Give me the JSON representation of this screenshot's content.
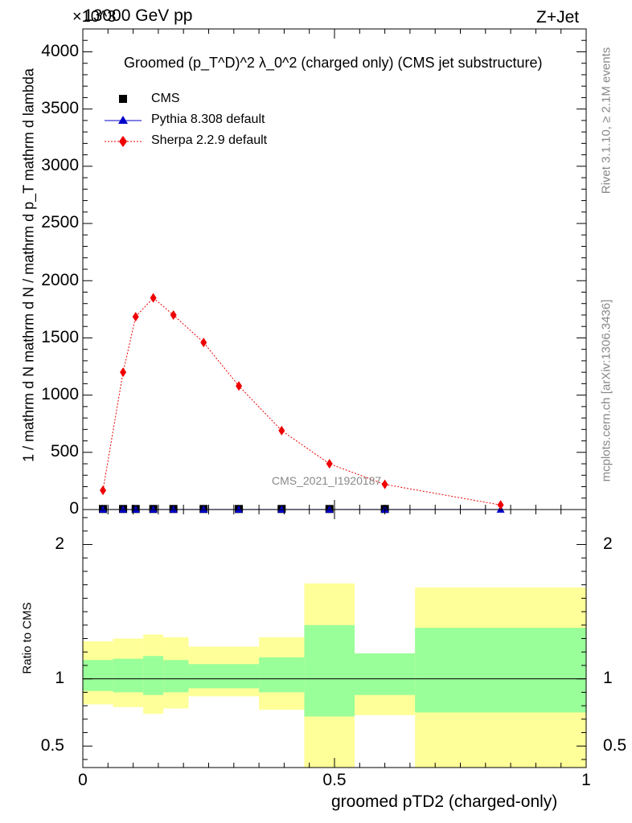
{
  "header": {
    "energy_label": "13000 GeV pp",
    "process_label": "Z+Jet",
    "exponent_label": "×10^3"
  },
  "side_labels": {
    "rivet": "Rivet 3.1.10, ≥ 2.1M events",
    "mcplots": "mcplots.cern.ch [arXiv:1306.3436]"
  },
  "watermark": "CMS_2021_I1920187",
  "chart_data": [
    {
      "type": "scatter",
      "title": "Groomed (p_T^D)^2 λ_0^2 (charged only) (CMS jet substructure)",
      "ylabel": "1 / mathrm d N  mathrm d N / mathrm d p_T mathrm d lambda",
      "ylim": [
        0,
        4200
      ],
      "xlim": [
        0,
        1
      ],
      "yticks": [
        0,
        500,
        1000,
        1500,
        2000,
        2500,
        3000,
        3500,
        4000
      ],
      "ytick_labels": [
        "0",
        "500",
        "1000",
        "1500",
        "2000",
        "2500",
        "3000",
        "3500",
        "4000"
      ],
      "legend_position": "top-left",
      "series": [
        {
          "name": "CMS",
          "color": "#000000",
          "marker": "square",
          "x": [
            0.04,
            0.08,
            0.105,
            0.14,
            0.18,
            0.24,
            0.31,
            0.395,
            0.49,
            0.6
          ],
          "y": [
            5,
            5,
            5,
            5,
            5,
            5,
            5,
            5,
            5,
            5
          ]
        },
        {
          "name": "Pythia 8.308 default",
          "color": "#0000cc",
          "marker": "triangle",
          "x": [
            0.04,
            0.08,
            0.105,
            0.14,
            0.18,
            0.24,
            0.31,
            0.395,
            0.49,
            0.6,
            0.83
          ],
          "y": [
            1,
            1,
            1,
            1,
            1,
            1,
            1,
            1,
            1,
            1,
            1
          ]
        },
        {
          "name": "Sherpa 2.2.9 default",
          "color": "#ee0000",
          "marker": "diamond",
          "x": [
            0.04,
            0.08,
            0.105,
            0.14,
            0.18,
            0.24,
            0.31,
            0.395,
            0.49,
            0.6,
            0.83
          ],
          "y": [
            168,
            1200,
            1685,
            1850,
            1700,
            1460,
            1080,
            690,
            400,
            220,
            40
          ]
        }
      ]
    },
    {
      "type": "area",
      "ylabel": "Ratio to CMS",
      "xlabel": "groomed pTD2 (charged-only)",
      "xlim": [
        0,
        1
      ],
      "ylim": [
        0.34,
        2.26
      ],
      "xticks": [
        0,
        0.5,
        1
      ],
      "xtick_labels": [
        "0",
        "0.5",
        "1"
      ],
      "yticks": [
        0.5,
        1,
        2
      ],
      "ytick_labels": [
        "0.5",
        "1",
        "2"
      ],
      "bands": [
        {
          "x0": 0.0,
          "x1": 0.06,
          "lo1": 0.91,
          "hi1": 1.14,
          "lo2": 0.81,
          "hi2": 1.28
        },
        {
          "x0": 0.06,
          "x1": 0.12,
          "lo1": 0.9,
          "hi1": 1.15,
          "lo2": 0.79,
          "hi2": 1.3
        },
        {
          "x0": 0.12,
          "x1": 0.16,
          "lo1": 0.88,
          "hi1": 1.17,
          "lo2": 0.74,
          "hi2": 1.33
        },
        {
          "x0": 0.16,
          "x1": 0.21,
          "lo1": 0.9,
          "hi1": 1.14,
          "lo2": 0.78,
          "hi2": 1.31
        },
        {
          "x0": 0.21,
          "x1": 0.35,
          "lo1": 0.93,
          "hi1": 1.11,
          "lo2": 0.87,
          "hi2": 1.24
        },
        {
          "x0": 0.35,
          "x1": 0.44,
          "lo1": 0.9,
          "hi1": 1.16,
          "lo2": 0.77,
          "hi2": 1.31
        },
        {
          "x0": 0.44,
          "x1": 0.54,
          "lo1": 0.72,
          "hi1": 1.4,
          "lo2": 0.34,
          "hi2": 1.71
        },
        {
          "x0": 0.54,
          "x1": 0.66,
          "lo1": 0.88,
          "hi1": 1.19,
          "lo2": 0.73,
          "hi2": 1.19
        },
        {
          "x0": 0.66,
          "x1": 1.0,
          "lo1": 0.75,
          "hi1": 1.38,
          "lo2": 0.34,
          "hi2": 1.68
        }
      ],
      "band_colors": {
        "inner": "#99ff99",
        "outer": "#ffff99"
      },
      "reference_line": 1
    }
  ]
}
